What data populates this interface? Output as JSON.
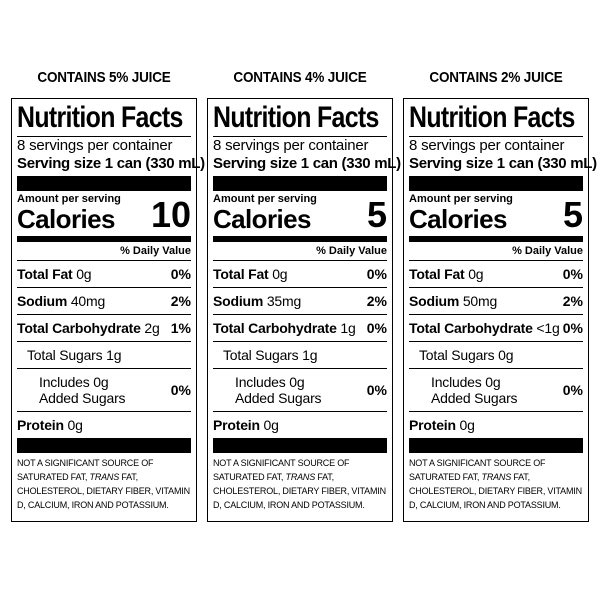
{
  "panels": [
    {
      "heading": "CONTAINS 5% JUICE",
      "title": "Nutrition Facts",
      "servings": "8 servings per container",
      "serving_size": "Serving size 1 can (330 mL)",
      "amount_per_serving": "Amount per serving",
      "calories_label": "Calories",
      "calories": "10",
      "daily_value_header": "% Daily Value",
      "total_fat_label": "Total Fat",
      "total_fat_amount": "0g",
      "total_fat_dv": "0%",
      "sodium_label": "Sodium",
      "sodium_amount": "40mg",
      "sodium_dv": "2%",
      "total_carb_label": "Total Carbohydrate",
      "total_carb_amount": "2g",
      "total_carb_dv": "1%",
      "total_sugars": "Total Sugars 1g",
      "added_sugars_line1": "Includes 0g",
      "added_sugars_line2": "Added Sugars",
      "added_sugars_dv": "0%",
      "protein_label": "Protein",
      "protein_amount": "0g",
      "footnote_a": "NOT A SIGNIFICANT SOURCE OF SATURATED FAT, ",
      "footnote_trans": "TRANS",
      "footnote_b": " FAT, CHOLESTEROL, DIETARY FIBER, VITAMIN D, CALCIUM, IRON AND POTASSIUM."
    },
    {
      "heading": "CONTAINS 4% JUICE",
      "title": "Nutrition Facts",
      "servings": "8 servings per container",
      "serving_size": "Serving size 1 can (330 mL)",
      "amount_per_serving": "Amount per serving",
      "calories_label": "Calories",
      "calories": "5",
      "daily_value_header": "% Daily Value",
      "total_fat_label": "Total Fat",
      "total_fat_amount": "0g",
      "total_fat_dv": "0%",
      "sodium_label": "Sodium",
      "sodium_amount": "35mg",
      "sodium_dv": "2%",
      "total_carb_label": "Total Carbohydrate",
      "total_carb_amount": "1g",
      "total_carb_dv": "0%",
      "total_sugars": "Total Sugars 1g",
      "added_sugars_line1": "Includes 0g",
      "added_sugars_line2": "Added Sugars",
      "added_sugars_dv": "0%",
      "protein_label": "Protein",
      "protein_amount": "0g",
      "footnote_a": "NOT A SIGNIFICANT SOURCE OF SATURATED FAT, ",
      "footnote_trans": "TRANS",
      "footnote_b": " FAT, CHOLESTEROL, DIETARY FIBER, VITAMIN D, CALCIUM, IRON AND POTASSIUM."
    },
    {
      "heading": "CONTAINS 2% JUICE",
      "title": "Nutrition Facts",
      "servings": "8 servings per container",
      "serving_size": "Serving size 1 can (330 mL)",
      "amount_per_serving": "Amount per serving",
      "calories_label": "Calories",
      "calories": "5",
      "daily_value_header": "% Daily Value",
      "total_fat_label": "Total Fat",
      "total_fat_amount": "0g",
      "total_fat_dv": "0%",
      "sodium_label": "Sodium",
      "sodium_amount": "50mg",
      "sodium_dv": "2%",
      "total_carb_label": "Total Carbohydrate",
      "total_carb_amount": "<1g",
      "total_carb_dv": "0%",
      "total_sugars": "Total Sugars 0g",
      "added_sugars_line1": "Includes 0g",
      "added_sugars_line2": "Added Sugars",
      "added_sugars_dv": "0%",
      "protein_label": "Protein",
      "protein_amount": "0g",
      "footnote_a": "NOT A SIGNIFICANT SOURCE OF SATURATED FAT, ",
      "footnote_trans": "TRANS",
      "footnote_b": " FAT, CHOLESTEROL, DIETARY FIBER, VITAMIN D, CALCIUM, IRON AND POTASSIUM."
    }
  ]
}
